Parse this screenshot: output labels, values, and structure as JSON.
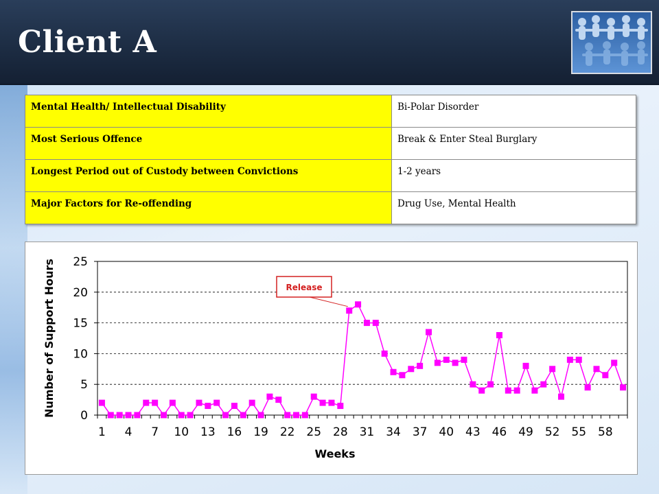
{
  "slide": {
    "title": "Client A"
  },
  "table": {
    "rows": [
      {
        "label": "Mental Health/ Intellectual Disability",
        "value": "Bi-Polar Disorder"
      },
      {
        "label": "Most Serious Offence",
        "value": "Break & Enter Steal Burglary"
      },
      {
        "label": "Longest Period out of Custody between Convictions",
        "value": "1-2 years"
      },
      {
        "label": "Major Factors for Re-offending",
        "value": "Drug Use, Mental Health"
      }
    ]
  },
  "colors": {
    "series": "#ff00ff",
    "header": "#1d2d44",
    "highlight": "#ffff00",
    "callout": "#d42020"
  },
  "chart_data": {
    "type": "line",
    "xlabel": "Weeks",
    "ylabel": "Number of Support Hours",
    "ylim": [
      0,
      25
    ],
    "yticks": [
      0,
      5,
      10,
      15,
      20,
      25
    ],
    "xlim": [
      1,
      60
    ],
    "xtick_labels": [
      1,
      4,
      7,
      10,
      13,
      16,
      19,
      22,
      25,
      28,
      31,
      34,
      37,
      40,
      43,
      46,
      49,
      52,
      55,
      58
    ],
    "grid": "horizontal dashed",
    "annotation": {
      "text": "Release",
      "week": 29
    },
    "series": [
      {
        "marker": "square",
        "x": [
          1,
          2,
          3,
          4,
          5,
          6,
          7,
          8,
          9,
          10,
          11,
          12,
          13,
          14,
          15,
          16,
          17,
          18,
          19,
          20,
          21,
          22,
          23,
          24,
          25,
          26,
          27,
          28,
          29,
          30,
          31,
          32,
          33,
          34,
          35,
          36,
          37,
          38,
          39,
          40,
          41,
          42,
          43,
          44,
          45,
          46,
          47,
          48,
          49,
          50,
          51,
          52,
          53,
          54,
          55,
          56,
          57,
          58,
          59,
          60
        ],
        "values": [
          2,
          0,
          0,
          0,
          0,
          2,
          2,
          0,
          2,
          0,
          0,
          2,
          1.5,
          2,
          0,
          1.5,
          0,
          2,
          0,
          3,
          2.5,
          0,
          0,
          0,
          3,
          2,
          2,
          1.5,
          17,
          18,
          15,
          15,
          10,
          7,
          6.5,
          7.5,
          8,
          13.5,
          8.5,
          9,
          8.5,
          9,
          5,
          4,
          5,
          13,
          4,
          4,
          8,
          4,
          5,
          7.5,
          3,
          9,
          9,
          4.5,
          7.5,
          6.5,
          8.5,
          4.5
        ]
      }
    ]
  }
}
